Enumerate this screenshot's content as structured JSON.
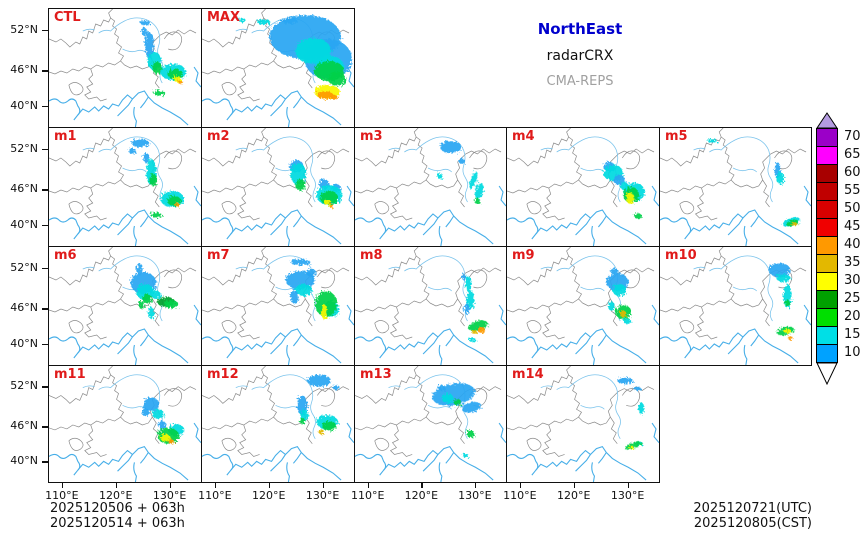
{
  "title": {
    "region": "NorthEast",
    "product": "radarCRX",
    "model": "CMA-REPS",
    "region_color": "#0000cd",
    "product_color": "#111111",
    "model_color": "#a0a0a0"
  },
  "axes": {
    "y_ticks": [
      "52°N",
      "46°N",
      "40°N"
    ],
    "x_ticks": [
      "110°E",
      "120°E",
      "130°E"
    ]
  },
  "footer": {
    "left": [
      "2025120506 + 063h",
      "2025120514 + 063h"
    ],
    "right": [
      "2025120721(UTC)",
      "2025120805(CST)"
    ]
  },
  "panel_label_color": "#e01b1b",
  "echo_colors": {
    "B": "#29a6f3",
    "C": "#00dbe0",
    "G": "#00d148",
    "DG": "#00a12e",
    "Y": "#f8f800",
    "GO": "#e3b900",
    "O": "#ff9a00",
    "R": "#ff3000"
  },
  "colorbar": {
    "values": [
      "70",
      "65",
      "60",
      "55",
      "50",
      "45",
      "40",
      "35",
      "30",
      "25",
      "20",
      "15",
      "10"
    ],
    "colors": [
      "#9b00c8",
      "#ff00ff",
      "#a80000",
      "#c00000",
      "#d80000",
      "#f00000",
      "#ff9900",
      "#e3b800",
      "#ffff00",
      "#00a000",
      "#00df00",
      "#00dfe6",
      "#00a2ff"
    ],
    "over_color": "#b49ce0",
    "under_color": "#ffffff"
  },
  "panels": [
    {
      "label": "CTL",
      "row": 0,
      "col": 0,
      "echoes": [
        [
          97,
          14,
          5,
          2.5,
          "B"
        ],
        [
          96,
          23,
          3,
          4,
          "B"
        ],
        [
          101,
          36,
          4.5,
          13,
          "B"
        ],
        [
          106,
          52,
          7,
          9,
          "C"
        ],
        [
          109,
          59,
          5,
          6,
          "G"
        ],
        [
          125,
          63,
          13,
          8,
          "C"
        ],
        [
          127,
          65,
          8,
          5,
          "G"
        ],
        [
          129,
          70,
          4,
          3,
          "Y"
        ],
        [
          132,
          73,
          2.5,
          2,
          "O"
        ],
        [
          111,
          84,
          6,
          2.5,
          "G"
        ]
      ]
    },
    {
      "label": "MAX",
      "row": 0,
      "col": 1,
      "echoes": [
        [
          104,
          28,
          36,
          22,
          "B"
        ],
        [
          127,
          50,
          24,
          20,
          "B"
        ],
        [
          112,
          42,
          18,
          13,
          "C"
        ],
        [
          129,
          58,
          14,
          11,
          "C"
        ],
        [
          128,
          62,
          15,
          10,
          "G"
        ],
        [
          136,
          70,
          9,
          7,
          "G"
        ],
        [
          126,
          83,
          13,
          7,
          "Y"
        ],
        [
          124,
          86,
          8,
          4,
          "O"
        ],
        [
          133,
          88,
          4,
          2.5,
          "O"
        ],
        [
          62,
          13,
          7,
          2.5,
          "C"
        ],
        [
          40,
          11,
          4,
          2,
          "C"
        ],
        [
          88,
          12,
          8,
          3,
          "B"
        ]
      ]
    },
    {
      "label": "m1",
      "row": 1,
      "col": 0,
      "echoes": [
        [
          92,
          15,
          9,
          4,
          "B"
        ],
        [
          84,
          23,
          4,
          3,
          "B"
        ],
        [
          98,
          30,
          3,
          5,
          "B"
        ],
        [
          103,
          44,
          5,
          13,
          "C"
        ],
        [
          105,
          52,
          4,
          6,
          "G"
        ],
        [
          124,
          71,
          12,
          8,
          "C"
        ],
        [
          126,
          73,
          7,
          5,
          "G"
        ],
        [
          129,
          77,
          2.5,
          2,
          "O"
        ],
        [
          108,
          87,
          6,
          2.5,
          "G"
        ]
      ]
    },
    {
      "label": "m2",
      "row": 1,
      "col": 1,
      "echoes": [
        [
          95,
          38,
          7,
          6,
          "B"
        ],
        [
          97,
          46,
          8,
          11,
          "C"
        ],
        [
          99,
          57,
          5,
          6,
          "G"
        ],
        [
          123,
          56,
          5,
          5,
          "B"
        ],
        [
          135,
          60,
          5,
          4,
          "B"
        ],
        [
          128,
          67,
          13,
          10,
          "C"
        ],
        [
          128,
          70,
          9,
          7,
          "G"
        ],
        [
          126,
          74,
          3.5,
          3,
          "Y"
        ],
        [
          130,
          78,
          2,
          2,
          "O"
        ]
      ]
    },
    {
      "label": "m3",
      "row": 1,
      "col": 2,
      "echoes": [
        [
          97,
          19,
          11,
          6,
          "B"
        ],
        [
          108,
          33,
          3,
          3,
          "B"
        ],
        [
          86,
          48,
          3,
          3,
          "C"
        ],
        [
          120,
          52,
          3,
          9,
          "C",
          20
        ],
        [
          126,
          63,
          4,
          8,
          "C",
          15
        ],
        [
          124,
          73,
          3,
          3,
          "G"
        ]
      ]
    },
    {
      "label": "m4",
      "row": 1,
      "col": 3,
      "echoes": [
        [
          103,
          39,
          6,
          5,
          "B"
        ],
        [
          107,
          45,
          10,
          8,
          "C"
        ],
        [
          113,
          52,
          6,
          5,
          "B"
        ],
        [
          118,
          58,
          4,
          4,
          "C"
        ],
        [
          128,
          64,
          11,
          9,
          "C"
        ],
        [
          125,
          67,
          8,
          8,
          "G"
        ],
        [
          124,
          70,
          4,
          6,
          "Y"
        ],
        [
          132,
          88,
          4,
          3,
          "G"
        ]
      ]
    },
    {
      "label": "m5",
      "row": 1,
      "col": 4,
      "echoes": [
        [
          53,
          13,
          5,
          2,
          "C"
        ],
        [
          119,
          42,
          3,
          8,
          "B"
        ],
        [
          122,
          50,
          4,
          6,
          "C"
        ],
        [
          133,
          94,
          9,
          4,
          "C",
          -20
        ],
        [
          134,
          95,
          6,
          3,
          "G",
          -20
        ],
        [
          136,
          96,
          3,
          1.5,
          "GO",
          -20
        ]
      ]
    },
    {
      "label": "m6",
      "row": 2,
      "col": 0,
      "echoes": [
        [
          91,
          22,
          3,
          6,
          "B"
        ],
        [
          95,
          36,
          13,
          11,
          "B"
        ],
        [
          97,
          45,
          9,
          8,
          "C"
        ],
        [
          108,
          48,
          5,
          4,
          "C"
        ],
        [
          99,
          52,
          5,
          5,
          "G"
        ],
        [
          93,
          58,
          3,
          4,
          "G"
        ],
        [
          118,
          55,
          9,
          5,
          "DG"
        ],
        [
          123,
          57,
          7,
          4,
          "G"
        ],
        [
          103,
          66,
          3,
          6,
          "C"
        ]
      ]
    },
    {
      "label": "m7",
      "row": 2,
      "col": 1,
      "echoes": [
        [
          99,
          15,
          10,
          3,
          "B"
        ],
        [
          110,
          26,
          5,
          4,
          "B"
        ],
        [
          99,
          33,
          15,
          9,
          "B"
        ],
        [
          102,
          43,
          9,
          6,
          "C"
        ],
        [
          93,
          50,
          4,
          7,
          "B"
        ],
        [
          130,
          62,
          8,
          8,
          "C"
        ],
        [
          125,
          57,
          11,
          13,
          "G"
        ],
        [
          123,
          65,
          3,
          8,
          "Y"
        ]
      ]
    },
    {
      "label": "m8",
      "row": 2,
      "col": 2,
      "echoes": [
        [
          110,
          30,
          2,
          3,
          "B"
        ],
        [
          115,
          37,
          3,
          8,
          "C"
        ],
        [
          117,
          53,
          4,
          9,
          "C"
        ],
        [
          113,
          62,
          3,
          5,
          "B"
        ],
        [
          125,
          79,
          10,
          5,
          "G",
          -15
        ],
        [
          128,
          83,
          4,
          3,
          "O"
        ],
        [
          121,
          85,
          3,
          2,
          "GO"
        ],
        [
          119,
          93,
          4,
          2,
          "C"
        ]
      ]
    },
    {
      "label": "m9",
      "row": 2,
      "col": 3,
      "echoes": [
        [
          108,
          24,
          4,
          3,
          "B"
        ],
        [
          111,
          35,
          11,
          9,
          "B"
        ],
        [
          113,
          43,
          7,
          6,
          "C"
        ],
        [
          105,
          59,
          3,
          5,
          "C"
        ],
        [
          117,
          65,
          8,
          7,
          "G"
        ],
        [
          117,
          67,
          3.5,
          3.5,
          "GO"
        ],
        [
          121,
          74,
          4,
          3,
          "C"
        ]
      ]
    },
    {
      "label": "m10",
      "row": 2,
      "col": 4,
      "echoes": [
        [
          121,
          23,
          11,
          7,
          "B"
        ],
        [
          125,
          31,
          7,
          4,
          "C"
        ],
        [
          129,
          49,
          4,
          12,
          "C"
        ],
        [
          129,
          56,
          3,
          3,
          "G"
        ],
        [
          127,
          84,
          9,
          4,
          "G",
          -15
        ],
        [
          129,
          84,
          4,
          2,
          "Y"
        ],
        [
          132,
          91,
          2.5,
          2,
          "O"
        ]
      ]
    },
    {
      "label": "m11",
      "row": 3,
      "col": 0,
      "echoes": [
        [
          97,
          47,
          4,
          4,
          "B"
        ],
        [
          103,
          39,
          8,
          7,
          "B"
        ],
        [
          110,
          49,
          6,
          5,
          "C"
        ],
        [
          114,
          60,
          4,
          4,
          "B"
        ],
        [
          128,
          65,
          8,
          6,
          "C"
        ],
        [
          120,
          71,
          11,
          8,
          "G"
        ],
        [
          117,
          73,
          5,
          4,
          "Y"
        ],
        [
          123,
          77,
          3,
          2.5,
          "O"
        ]
      ]
    },
    {
      "label": "m12",
      "row": 3,
      "col": 1,
      "echoes": [
        [
          118,
          15,
          12,
          6,
          "B"
        ],
        [
          135,
          22,
          4,
          2,
          "B"
        ],
        [
          101,
          40,
          5,
          10,
          "B"
        ],
        [
          103,
          50,
          4,
          6,
          "C"
        ],
        [
          101,
          56,
          3,
          3,
          "G"
        ],
        [
          126,
          57,
          11,
          7,
          "C"
        ],
        [
          128,
          61,
          7,
          5,
          "G"
        ],
        [
          120,
          67,
          3,
          2.5,
          "GO"
        ]
      ]
    },
    {
      "label": "m13",
      "row": 3,
      "col": 2,
      "echoes": [
        [
          88,
          22,
          4,
          3,
          "B"
        ],
        [
          100,
          29,
          22,
          11,
          "B",
          -10
        ],
        [
          94,
          33,
          6,
          5,
          "C"
        ],
        [
          104,
          37,
          4,
          3,
          "G"
        ],
        [
          118,
          42,
          10,
          5,
          "B",
          -15
        ],
        [
          117,
          69,
          4,
          4,
          "G"
        ],
        [
          112,
          91,
          3,
          2,
          "C"
        ]
      ]
    },
    {
      "label": "m14",
      "row": 3,
      "col": 3,
      "echoes": [
        [
          119,
          15,
          8,
          3,
          "B"
        ],
        [
          131,
          23,
          4,
          2,
          "B"
        ],
        [
          135,
          43,
          3,
          6,
          "C"
        ],
        [
          133,
          79,
          4,
          2,
          "C"
        ],
        [
          127,
          81,
          9,
          3,
          "G",
          -20
        ],
        [
          125,
          83,
          3,
          2,
          "Y"
        ]
      ]
    }
  ]
}
